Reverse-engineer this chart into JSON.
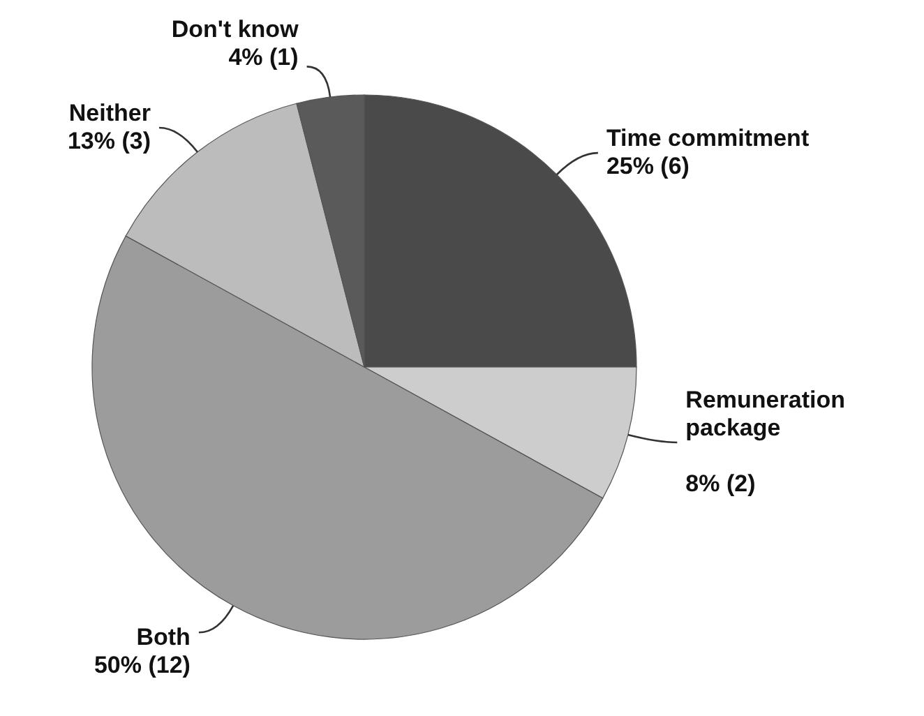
{
  "chart_data": {
    "type": "pie",
    "categories": [
      "Time commitment",
      "Remuneration package",
      "Both",
      "Neither",
      "Don't know"
    ],
    "values": [
      25,
      8,
      50,
      13,
      4
    ],
    "value_labels": [
      "25% (6)",
      "8% (2)",
      "50% (12)",
      "13% (3)",
      "4% (1)"
    ],
    "colors": [
      "#4a4a4a",
      "#cdcdcd",
      "#9c9c9c",
      "#bcbcbc",
      "#5a5a5a"
    ]
  }
}
